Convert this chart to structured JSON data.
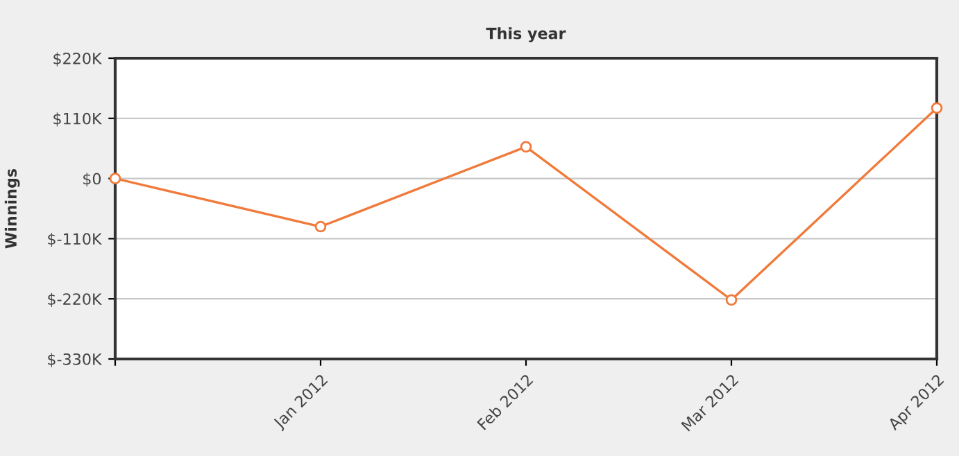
{
  "chart_data": {
    "type": "line",
    "title": "This year",
    "ylabel": "Winnings",
    "categories": [
      null,
      "Jan 2012",
      "Feb 2012",
      "Mar 2012",
      "Apr 2012"
    ],
    "series": [
      {
        "color": "#f07a3a",
        "values": [
          0,
          -88,
          58,
          -222,
          129
        ]
      }
    ],
    "ylim": [
      -330,
      220
    ],
    "yticks": [
      {
        "value": -330,
        "label": "$-330K"
      },
      {
        "value": -220,
        "label": "$-220K"
      },
      {
        "value": -110,
        "label": "$-110K"
      },
      {
        "value": 0,
        "label": "$0"
      },
      {
        "value": 110,
        "label": "$110K"
      },
      {
        "value": 220,
        "label": "$220K"
      }
    ],
    "grid": "y",
    "marker": "circle",
    "line_style": "solid",
    "legend": false
  }
}
